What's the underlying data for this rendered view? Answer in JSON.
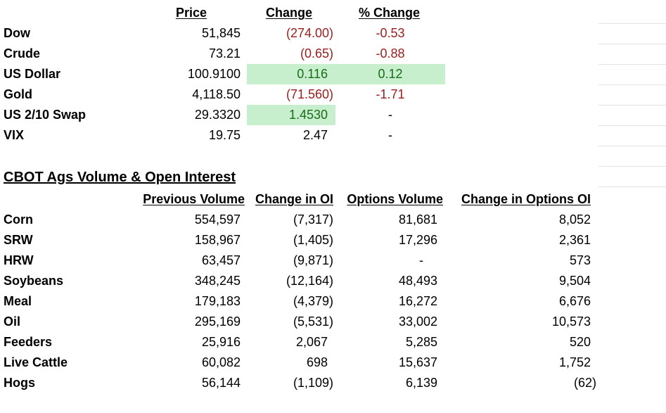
{
  "markets": {
    "headers": {
      "price": "Price",
      "change": "Change",
      "pct_change": "% Change"
    },
    "rows": [
      {
        "name": "Dow",
        "price": "51,845",
        "change": "(274.00)",
        "pct": "-0.53"
      },
      {
        "name": "Crude",
        "price": "73.21",
        "change": "(0.65)",
        "pct": "-0.88"
      },
      {
        "name": "US Dollar",
        "price": "100.9100",
        "change": "0.116",
        "pct": "0.12"
      },
      {
        "name": "Gold",
        "price": "4,118.50",
        "change": "(71.560)",
        "pct": "-1.71"
      },
      {
        "name": "US 2/10 Swap",
        "price": "29.3320",
        "change": "1.4530",
        "pct": "-"
      },
      {
        "name": "VIX",
        "price": "19.75",
        "change": "2.47",
        "pct": "-"
      }
    ],
    "colors": {
      "negative": "#9c1c1c",
      "positive": "#1b6b1b",
      "highlight": "#c7efcd"
    }
  },
  "cbot": {
    "title": "CBOT Ags Volume & Open Interest",
    "headers": {
      "prev_volume": "Previous Volume",
      "change_oi": "Change in OI",
      "options_volume": "Options Volume",
      "change_options_oi": "Change in Options OI"
    },
    "rows": [
      {
        "name": "Corn",
        "prev": "554,597",
        "oi": "(7,317)",
        "opt_vol": "81,681",
        "opt_oi": "8,052"
      },
      {
        "name": "SRW",
        "prev": "158,967",
        "oi": "(1,405)",
        "opt_vol": "17,296",
        "opt_oi": "2,361"
      },
      {
        "name": "HRW",
        "prev": "63,457",
        "oi": "(9,871)",
        "opt_vol": "-",
        "opt_oi": "573"
      },
      {
        "name": "Soybeans",
        "prev": "348,245",
        "oi": "(12,164)",
        "opt_vol": "48,493",
        "opt_oi": "9,504"
      },
      {
        "name": "Meal",
        "prev": "179,183",
        "oi": "(4,379)",
        "opt_vol": "16,272",
        "opt_oi": "6,676"
      },
      {
        "name": "Oil",
        "prev": "295,169",
        "oi": "(5,531)",
        "opt_vol": "33,002",
        "opt_oi": "10,573"
      },
      {
        "name": "Feeders",
        "prev": "25,916",
        "oi": "2,067",
        "opt_vol": "5,285",
        "opt_oi": "520"
      },
      {
        "name": "Live Cattle",
        "prev": "60,082",
        "oi": "698",
        "opt_vol": "15,637",
        "opt_oi": "1,752"
      },
      {
        "name": "Hogs",
        "prev": "56,144",
        "oi": "(1,109)",
        "opt_vol": "6,139",
        "opt_oi": "(62)"
      }
    ]
  }
}
